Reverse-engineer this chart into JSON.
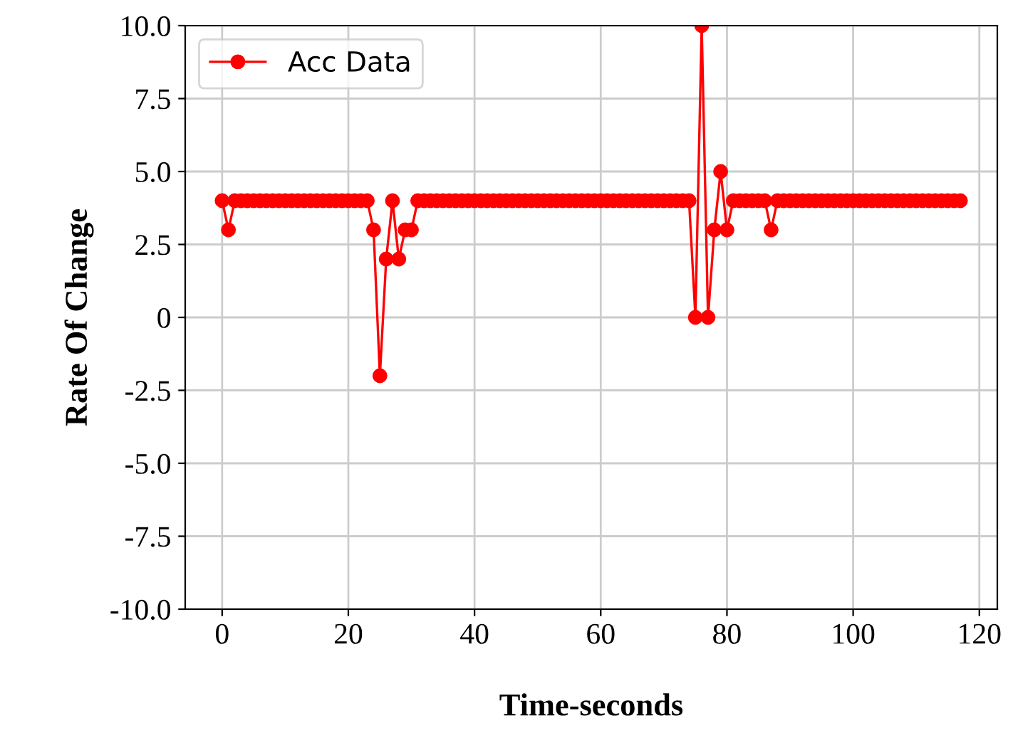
{
  "chart_data": {
    "type": "line",
    "xlabel": "Time-seconds",
    "ylabel": "Rate Of Change",
    "x": [
      0,
      1,
      2,
      3,
      4,
      5,
      6,
      7,
      8,
      9,
      10,
      11,
      12,
      13,
      14,
      15,
      16,
      17,
      18,
      19,
      20,
      21,
      22,
      23,
      24,
      25,
      26,
      27,
      28,
      29,
      30,
      31,
      32,
      33,
      34,
      35,
      36,
      37,
      38,
      39,
      40,
      41,
      42,
      43,
      44,
      45,
      46,
      47,
      48,
      49,
      50,
      51,
      52,
      53,
      54,
      55,
      56,
      57,
      58,
      59,
      60,
      61,
      62,
      63,
      64,
      65,
      66,
      67,
      68,
      69,
      70,
      71,
      72,
      73,
      74,
      75,
      76,
      77,
      78,
      79,
      80,
      81,
      82,
      83,
      84,
      85,
      86,
      87,
      88,
      89,
      90,
      91,
      92,
      93,
      94,
      95,
      96,
      97,
      98,
      99,
      100,
      101,
      102,
      103,
      104,
      105,
      106,
      107,
      108,
      109,
      110,
      111,
      112,
      113,
      114,
      115,
      116,
      117
    ],
    "series": [
      {
        "name": "Acc Data",
        "color": "#ff0000",
        "values": [
          4,
          3,
          4,
          4,
          4,
          4,
          4,
          4,
          4,
          4,
          4,
          4,
          4,
          4,
          4,
          4,
          4,
          4,
          4,
          4,
          4,
          4,
          4,
          4,
          3,
          -2,
          2,
          4,
          2,
          3,
          3,
          4,
          4,
          4,
          4,
          4,
          4,
          4,
          4,
          4,
          4,
          4,
          4,
          4,
          4,
          4,
          4,
          4,
          4,
          4,
          4,
          4,
          4,
          4,
          4,
          4,
          4,
          4,
          4,
          4,
          4,
          4,
          4,
          4,
          4,
          4,
          4,
          4,
          4,
          4,
          4,
          4,
          4,
          4,
          4,
          0,
          10,
          0,
          3,
          5,
          3,
          4,
          4,
          4,
          4,
          4,
          4,
          3,
          4,
          4,
          4,
          4,
          4,
          4,
          4,
          4,
          4,
          4,
          4,
          4,
          4,
          4,
          4,
          4,
          4,
          4,
          4,
          4,
          4,
          4,
          4,
          4,
          4,
          4,
          4,
          4,
          4,
          4
        ]
      }
    ],
    "xlim": [
      -5.85,
      122.85
    ],
    "xticks": [
      0,
      20,
      40,
      60,
      80,
      100,
      120
    ],
    "ylim": [
      -10,
      10
    ],
    "yticks": [
      {
        "value": -10,
        "label": "-10.0"
      },
      {
        "value": -7.5,
        "label": "-7.5"
      },
      {
        "value": -5,
        "label": "-5.0"
      },
      {
        "value": -2.5,
        "label": "-2.5"
      },
      0,
      {
        "value": 2.5,
        "label": "2.5"
      },
      {
        "value": 5,
        "label": "5.0"
      },
      {
        "value": 7.5,
        "label": "7.5"
      },
      {
        "value": 10,
        "label": "10.0"
      }
    ],
    "grid": true,
    "legend": "top left",
    "marker": "circle",
    "line_style": "solid"
  }
}
